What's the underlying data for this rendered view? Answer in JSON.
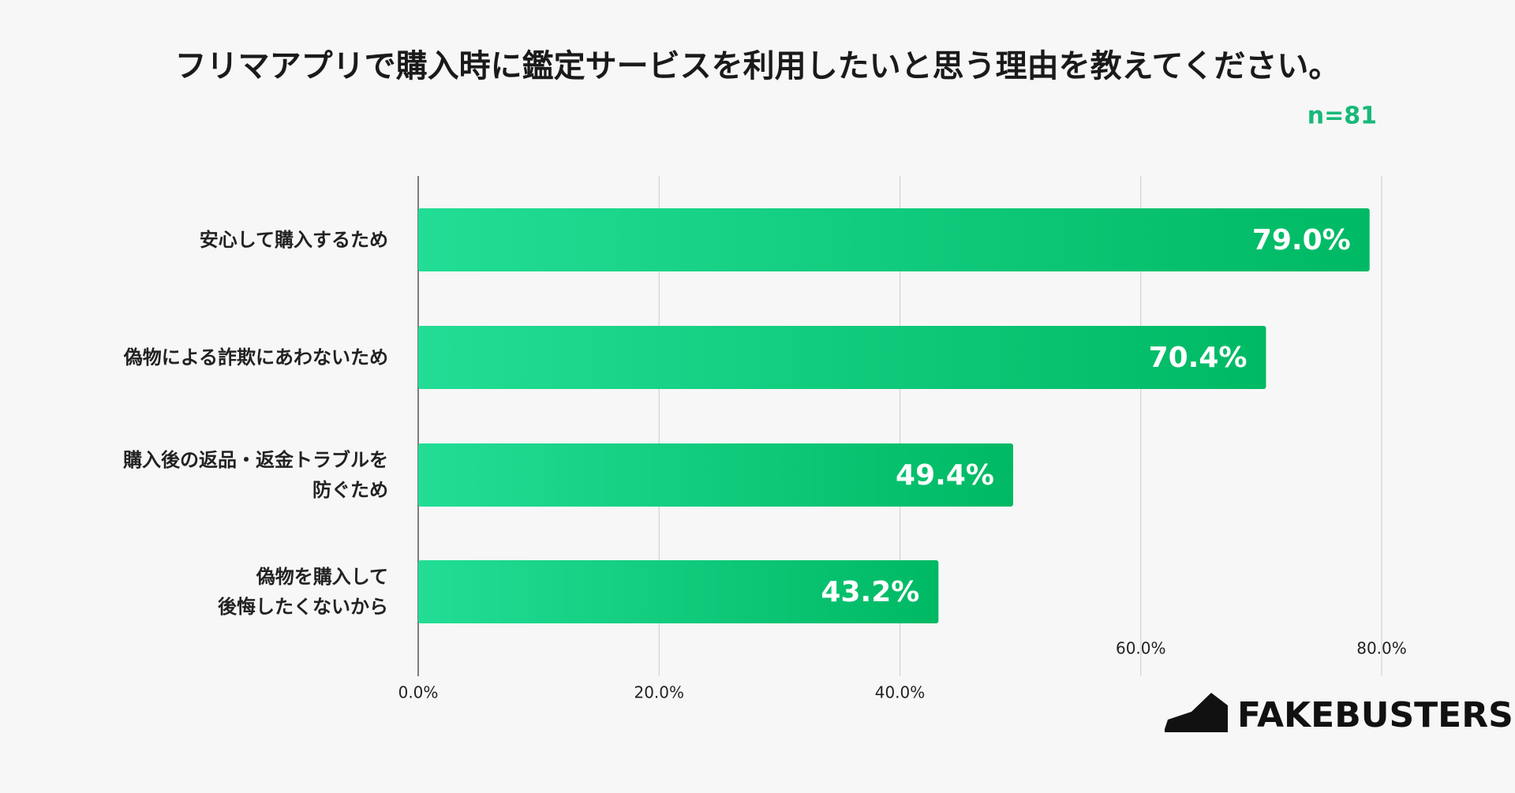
{
  "chart_data": {
    "type": "bar",
    "orientation": "horizontal",
    "title": "フリマアプリで購入時に鑑定サービスを利用したいと思う理由を教えてください。",
    "annotation": "n=81",
    "categories": [
      "安心して購入するため",
      "偽物による詐欺にあわないため",
      "購入後の返品・返金トラブルを\n防ぐため",
      "偽物を購入して\n後悔したくないから"
    ],
    "values": [
      79.0,
      70.4,
      49.4,
      43.2
    ],
    "value_labels": [
      "79.0%",
      "70.4%",
      "49.4%",
      "43.2%"
    ],
    "color": "#00b964",
    "xlim": [
      0,
      80
    ],
    "xticks": [
      {
        "value": 0,
        "label": "0.0%"
      },
      {
        "value": 20,
        "label": "20.0%"
      },
      {
        "value": 40,
        "label": "40.0%"
      },
      {
        "value": 60,
        "label": "60.0%"
      },
      {
        "value": 80,
        "label": "80.0%"
      }
    ],
    "grid": true
  },
  "logo": "FAKEBUSTERS"
}
